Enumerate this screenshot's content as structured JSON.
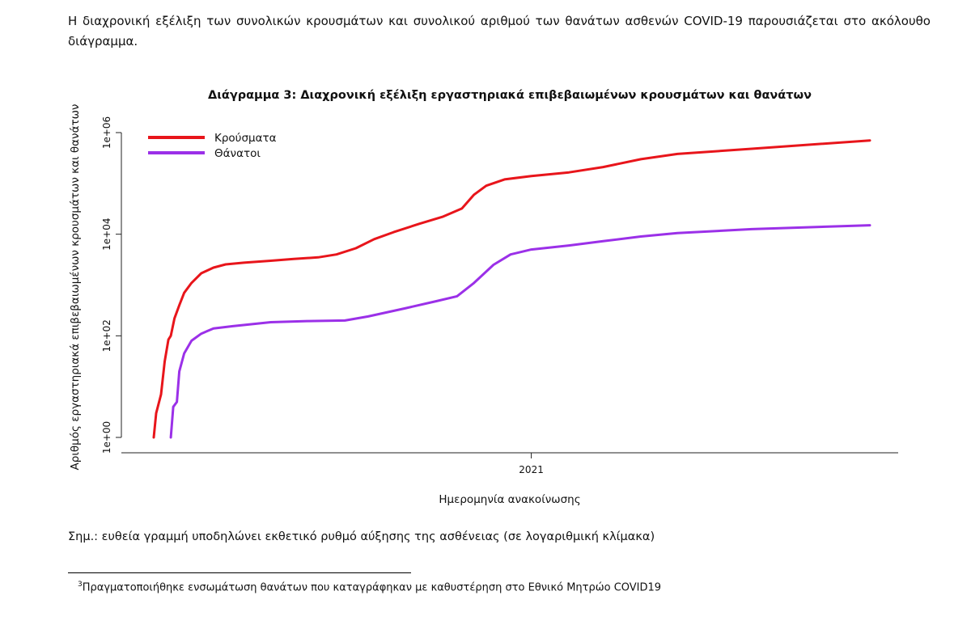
{
  "intro_text": "Η διαχρονική εξέλιξη των συνολικών κρουσμάτων και συνολικού αριθμού των θανάτων ασθενών COVID-19 παρουσιάζεται στο ακόλουθο διάγραμμα.",
  "chart_data": {
    "type": "line",
    "title": "Διάγραμμα 3: Διαχρονική εξέλιξη εργαστηριακά επιβεβαιωμένων κρουσμάτων και θανάτων",
    "xlabel": "Ημερομηνία ανακοίνωσης",
    "ylabel": "Αριθμός εργαστηριακά επιβεβαιωμένων κρουσμάτων και θανάτων",
    "y_scale": "log",
    "ylim": [
      1,
      1000000
    ],
    "y_ticks": [
      {
        "value": 1,
        "label": "1e+00"
      },
      {
        "value": 100,
        "label": "1e+02"
      },
      {
        "value": 10000,
        "label": "1e+04"
      },
      {
        "value": 1000000,
        "label": "1e+06"
      }
    ],
    "x_domain": [
      "2020-02-26",
      "2021-10-06"
    ],
    "x_ticks": [
      {
        "value": "2021-01-01",
        "label": "2021"
      }
    ],
    "grid": false,
    "legend_position": "top-left",
    "series": [
      {
        "name": "Κρούσματα",
        "color": "#e8151b",
        "points": [
          [
            "2020-02-26",
            1
          ],
          [
            "2020-02-28",
            3
          ],
          [
            "2020-03-03",
            7
          ],
          [
            "2020-03-06",
            31
          ],
          [
            "2020-03-09",
            84
          ],
          [
            "2020-03-11",
            100
          ],
          [
            "2020-03-14",
            220
          ],
          [
            "2020-03-18",
            400
          ],
          [
            "2020-03-22",
            700
          ],
          [
            "2020-03-28",
            1100
          ],
          [
            "2020-04-05",
            1700
          ],
          [
            "2020-04-15",
            2200
          ],
          [
            "2020-04-25",
            2550
          ],
          [
            "2020-05-10",
            2750
          ],
          [
            "2020-06-01",
            3000
          ],
          [
            "2020-06-20",
            3250
          ],
          [
            "2020-07-10",
            3500
          ],
          [
            "2020-07-25",
            4000
          ],
          [
            "2020-08-10",
            5300
          ],
          [
            "2020-08-25",
            8000
          ],
          [
            "2020-09-10",
            11000
          ],
          [
            "2020-10-01",
            16000
          ],
          [
            "2020-10-20",
            22000
          ],
          [
            "2020-11-05",
            32000
          ],
          [
            "2020-11-15",
            60000
          ],
          [
            "2020-11-25",
            90000
          ],
          [
            "2020-12-10",
            120000
          ],
          [
            "2021-01-01",
            140000
          ],
          [
            "2021-02-01",
            165000
          ],
          [
            "2021-03-01",
            210000
          ],
          [
            "2021-04-01",
            300000
          ],
          [
            "2021-05-01",
            380000
          ],
          [
            "2021-07-01",
            480000
          ],
          [
            "2021-10-06",
            700000
          ]
        ]
      },
      {
        "name": "Θάνατοι",
        "color": "#9b30e8",
        "points": [
          [
            "2020-03-11",
            1
          ],
          [
            "2020-03-13",
            4
          ],
          [
            "2020-03-16",
            5
          ],
          [
            "2020-03-18",
            20
          ],
          [
            "2020-03-22",
            45
          ],
          [
            "2020-03-28",
            80
          ],
          [
            "2020-04-05",
            110
          ],
          [
            "2020-04-15",
            140
          ],
          [
            "2020-05-01",
            155
          ],
          [
            "2020-06-01",
            185
          ],
          [
            "2020-07-01",
            195
          ],
          [
            "2020-08-01",
            200
          ],
          [
            "2020-08-20",
            240
          ],
          [
            "2020-09-20",
            350
          ],
          [
            "2020-10-15",
            480
          ],
          [
            "2020-11-01",
            600
          ],
          [
            "2020-11-15",
            1100
          ],
          [
            "2020-12-01",
            2500
          ],
          [
            "2020-12-15",
            4000
          ],
          [
            "2021-01-01",
            5000
          ],
          [
            "2021-02-01",
            6000
          ],
          [
            "2021-03-01",
            7300
          ],
          [
            "2021-04-01",
            9000
          ],
          [
            "2021-05-01",
            10500
          ],
          [
            "2021-07-01",
            12600
          ],
          [
            "2021-10-06",
            15000
          ]
        ]
      }
    ]
  },
  "note": "Σημ.: ευθεία γραμμή υποδηλώνει εκθετικό ρυθμό αύξησης της ασθένειας (σε λογαριθμική κλίμακα)",
  "footnote": {
    "marker": "3",
    "text": "Πραγματοποιήθηκε ενσωμάτωση θανάτων που καταγράφηκαν με καθυστέρηση στο Εθνικό Μητρώο COVID19"
  }
}
